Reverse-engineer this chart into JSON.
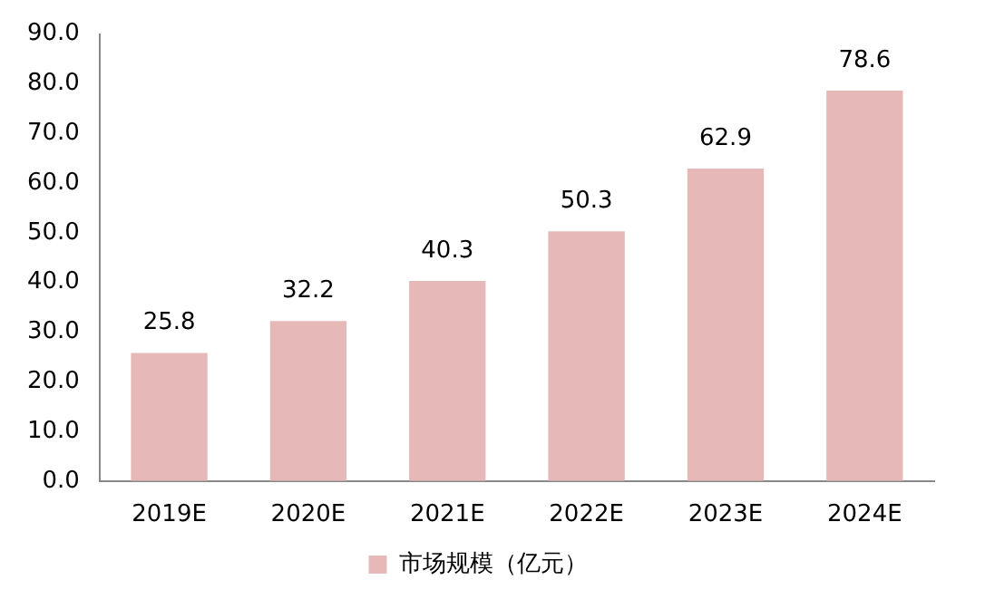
{
  "chart_data": {
    "type": "bar",
    "categories": [
      "2019E",
      "2020E",
      "2021E",
      "2022E",
      "2023E",
      "2024E"
    ],
    "series": [
      {
        "name": "市场规模（亿元）",
        "color": "#e6b9b8",
        "values": [
          25.8,
          32.2,
          40.3,
          50.3,
          62.9,
          78.6
        ]
      }
    ],
    "ylim": [
      0,
      90
    ],
    "yticks": [
      {
        "value": 0,
        "label": "0.0"
      },
      {
        "value": 10,
        "label": "10.0"
      },
      {
        "value": 20,
        "label": "20.0"
      },
      {
        "value": 30,
        "label": "30.0"
      },
      {
        "value": 40,
        "label": "40.0"
      },
      {
        "value": 50,
        "label": "50.0"
      },
      {
        "value": 60,
        "label": "60.0"
      },
      {
        "value": 70,
        "label": "70.0"
      },
      {
        "value": 80,
        "label": "80.0"
      },
      {
        "value": 90,
        "label": "90.0"
      }
    ],
    "grid": false,
    "legend": "bottom",
    "data_labels": true
  }
}
